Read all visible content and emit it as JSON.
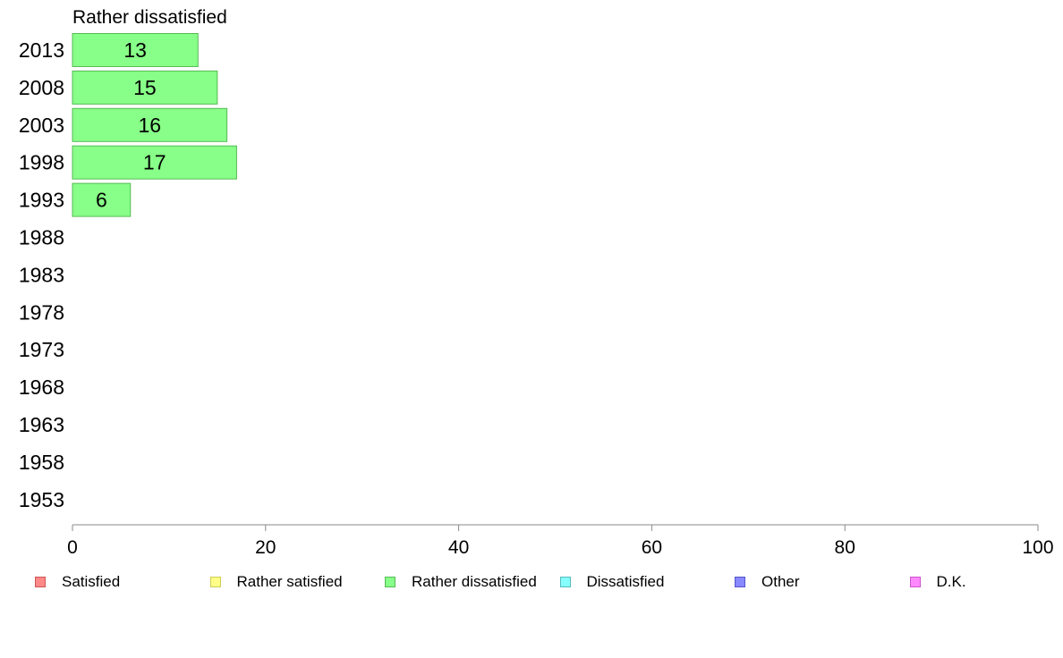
{
  "chart_data": {
    "type": "bar",
    "orientation": "horizontal",
    "title": "Rather dissatisfied",
    "categories": [
      "2013",
      "2008",
      "2003",
      "1998",
      "1993",
      "1988",
      "1983",
      "1978",
      "1973",
      "1968",
      "1963",
      "1958",
      "1953"
    ],
    "series": [
      {
        "name": "Rather dissatisfied",
        "values": [
          13,
          15,
          16,
          17,
          6,
          null,
          null,
          null,
          null,
          null,
          null,
          null,
          null
        ]
      }
    ],
    "xlim": [
      0,
      100
    ],
    "xticks": [
      0,
      20,
      40,
      60,
      80,
      100
    ],
    "grid": false,
    "legend_position": "bottom",
    "colors": {
      "bar_fill": "#88ff88",
      "bar_stroke": "#55bb55",
      "axis": "#888888"
    }
  },
  "legend": [
    {
      "label": "Satisfied",
      "color": "#ff8888",
      "border": "#cc5555"
    },
    {
      "label": "Rather satisfied",
      "color": "#ffff88",
      "border": "#cccc55"
    },
    {
      "label": "Rather dissatisfied",
      "color": "#88ff88",
      "border": "#55bb55"
    },
    {
      "label": "Dissatisfied",
      "color": "#88ffff",
      "border": "#55bbbb"
    },
    {
      "label": "Other",
      "color": "#8888ff",
      "border": "#5555cc"
    },
    {
      "label": "D.K.",
      "color": "#ff88ff",
      "border": "#cc55cc"
    }
  ]
}
